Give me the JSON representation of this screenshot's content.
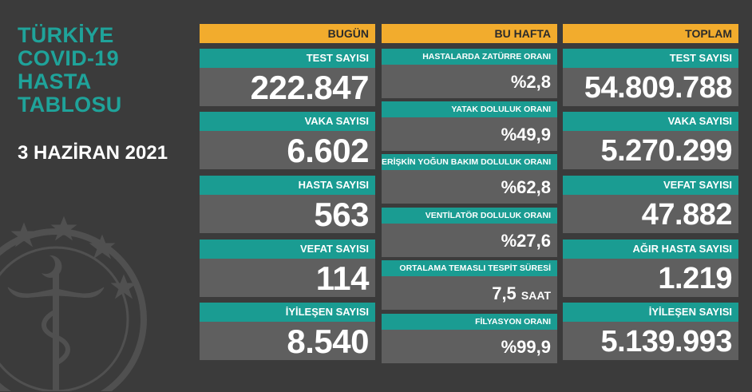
{
  "title": {
    "line1": "TÜRKİYE",
    "line2": "COVID-19",
    "line3": "HASTA",
    "line4": "TABLOSU"
  },
  "date": "3 HAZİRAN 2021",
  "columns": {
    "today": {
      "header": "BUGÜN",
      "items": [
        {
          "label": "TEST SAYISI",
          "value": "222.847"
        },
        {
          "label": "VAKA SAYISI",
          "value": "6.602"
        },
        {
          "label": "HASTA SAYISI",
          "value": "563"
        },
        {
          "label": "VEFAT SAYISI",
          "value": "114"
        },
        {
          "label": "İYİLEŞEN SAYISI",
          "value": "8.540"
        }
      ]
    },
    "week": {
      "header": "BU HAFTA",
      "items": [
        {
          "label": "HASTALARDA ZATÜRRE ORANI",
          "value": "%2,8"
        },
        {
          "label": "YATAK DOLULUK ORANI",
          "value": "%49,9"
        },
        {
          "label": "ERİŞKİN YOĞUN BAKIM DOLULUK ORANI",
          "value": "%62,8"
        },
        {
          "label": "VENTİLATÖR DOLULUK ORANI",
          "value": "%27,6"
        },
        {
          "label": "ORTALAMA TEMASLI TESPİT SÜRESİ",
          "value": "7,5",
          "unit": "SAAT"
        },
        {
          "label": "FİLYASYON ORANI",
          "value": "%99,9"
        }
      ]
    },
    "total": {
      "header": "TOPLAM",
      "items": [
        {
          "label": "TEST SAYISI",
          "value": "54.809.788"
        },
        {
          "label": "VAKA SAYISI",
          "value": "5.270.299"
        },
        {
          "label": "VEFAT SAYISI",
          "value": "47.882"
        },
        {
          "label": "AĞIR HASTA SAYISI",
          "value": "1.219"
        },
        {
          "label": "İYİLEŞEN SAYISI",
          "value": "5.139.993"
        }
      ]
    }
  },
  "icons": {
    "emblem": "ministry-of-health-emblem"
  },
  "colors": {
    "background": "#3b3b3b",
    "header": "#f2ac2d",
    "label": "#1a9c92",
    "value_bg": "#5f5f5f",
    "title": "#1fa39a"
  }
}
